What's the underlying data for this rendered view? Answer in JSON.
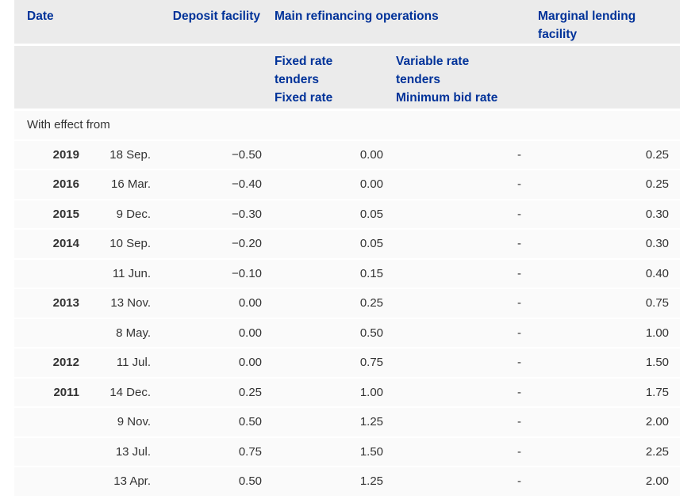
{
  "chart_data": {
    "type": "table",
    "header": {
      "col_date": "Date",
      "col_deposit": "Deposit facility",
      "col_mro_group": "Main refinancing operations",
      "col_marginal": "Marginal lending facility",
      "sub_fixed": [
        "Fixed rate",
        "tenders",
        "Fixed rate"
      ],
      "sub_variable": [
        "Variable rate",
        "tenders",
        "Minimum bid rate"
      ]
    },
    "section_label": "With effect from",
    "rows": [
      {
        "year": "2019",
        "date": "18 Sep.",
        "deposit": "−0.50",
        "mro_fixed": "0.00",
        "mro_variable": "-",
        "marginal": "0.25"
      },
      {
        "year": "2016",
        "date": "16 Mar.",
        "deposit": "−0.40",
        "mro_fixed": "0.00",
        "mro_variable": "-",
        "marginal": "0.25"
      },
      {
        "year": "2015",
        "date": "9 Dec.",
        "deposit": "−0.30",
        "mro_fixed": "0.05",
        "mro_variable": "-",
        "marginal": "0.30"
      },
      {
        "year": "2014",
        "date": "10 Sep.",
        "deposit": "−0.20",
        "mro_fixed": "0.05",
        "mro_variable": "-",
        "marginal": "0.30"
      },
      {
        "year": "",
        "date": "11 Jun.",
        "deposit": "−0.10",
        "mro_fixed": "0.15",
        "mro_variable": "-",
        "marginal": "0.40"
      },
      {
        "year": "2013",
        "date": "13 Nov.",
        "deposit": "0.00",
        "mro_fixed": "0.25",
        "mro_variable": "-",
        "marginal": "0.75"
      },
      {
        "year": "",
        "date": "8 May.",
        "deposit": "0.00",
        "mro_fixed": "0.50",
        "mro_variable": "-",
        "marginal": "1.00"
      },
      {
        "year": "2012",
        "date": "11 Jul.",
        "deposit": "0.00",
        "mro_fixed": "0.75",
        "mro_variable": "-",
        "marginal": "1.50"
      },
      {
        "year": "2011",
        "date": "14 Dec.",
        "deposit": "0.25",
        "mro_fixed": "1.00",
        "mro_variable": "-",
        "marginal": "1.75"
      },
      {
        "year": "",
        "date": "9 Nov.",
        "deposit": "0.50",
        "mro_fixed": "1.25",
        "mro_variable": "-",
        "marginal": "2.00"
      },
      {
        "year": "",
        "date": "13 Jul.",
        "deposit": "0.75",
        "mro_fixed": "1.50",
        "mro_variable": "-",
        "marginal": "2.25"
      },
      {
        "year": "",
        "date": "13 Apr.",
        "deposit": "0.50",
        "mro_fixed": "1.25",
        "mro_variable": "-",
        "marginal": "2.00"
      }
    ]
  },
  "colors": {
    "header_bg": "#ebebeb",
    "header_text": "#003299",
    "row_bg": "#fafafa",
    "row_separator": "#ffffff",
    "body_text": "#333333",
    "page_bg": "#ffffff"
  }
}
